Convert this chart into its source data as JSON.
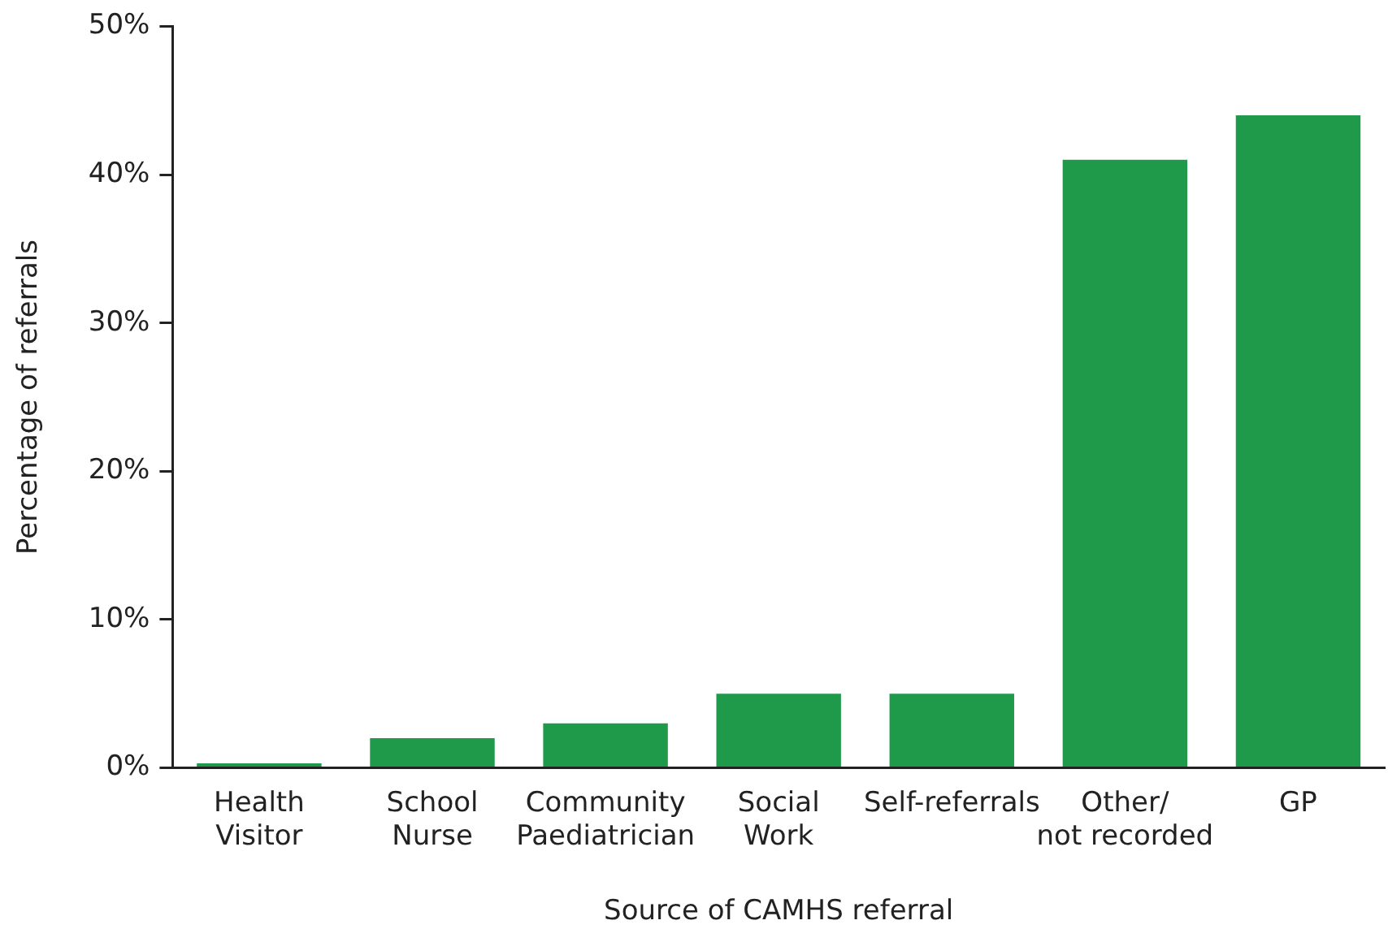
{
  "chart_data": {
    "type": "bar",
    "xlabel": "Source of CAMHS referral",
    "ylabel": "Percentage of referrals",
    "categories": [
      "Health Visitor",
      "School Nurse",
      "Community Paediatrician",
      "Social Work",
      "Self-referrals",
      "Other/ not recorded",
      "GP"
    ],
    "values": [
      0.3,
      2,
      3,
      5,
      5,
      41,
      44
    ],
    "color": "#1f9a4a",
    "ylim": [
      0,
      50
    ],
    "yticks": [
      {
        "value": 0,
        "label": "0%"
      },
      {
        "value": 10,
        "label": "10%"
      },
      {
        "value": 20,
        "label": "20%"
      },
      {
        "value": 30,
        "label": "30%"
      },
      {
        "value": 40,
        "label": "40%"
      },
      {
        "value": 50,
        "label": "50%"
      }
    ],
    "grid": false,
    "legend": false
  }
}
